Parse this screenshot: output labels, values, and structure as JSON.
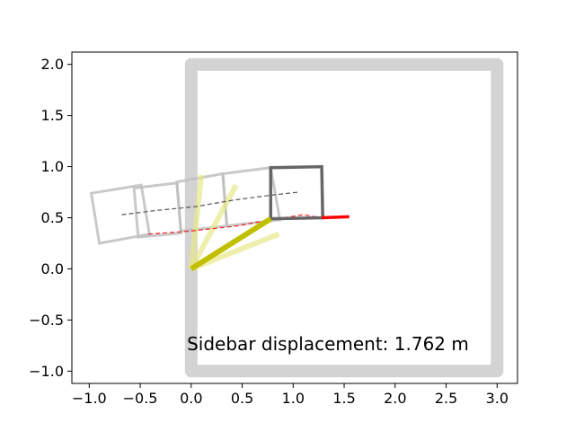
{
  "chart_data": {
    "type": "line",
    "title": "",
    "xlabel": "",
    "ylabel": "",
    "xlim": [
      -1.17,
      3.2
    ],
    "ylim": [
      -1.12,
      2.12
    ],
    "grid": false,
    "x_ticks": [
      -1.0,
      -0.5,
      0.0,
      0.5,
      1.0,
      1.5,
      2.0,
      2.5,
      3.0
    ],
    "x_tick_labels": [
      "−1.0",
      "−0.5",
      "0.0",
      "0.5",
      "1.0",
      "1.5",
      "2.0",
      "2.5",
      "3.0"
    ],
    "y_ticks": [
      -1.0,
      -0.5,
      0.0,
      0.5,
      1.0,
      1.5,
      2.0
    ],
    "y_tick_labels": [
      "−1.0",
      "−0.5",
      "0.0",
      "0.5",
      "1.0",
      "1.5",
      "2.0"
    ],
    "annotation": "Sidebar displacement: 1.762 m",
    "colors": {
      "wall": "#d3d3d3",
      "current_body": "#666666",
      "ghost_body": "#bfbfbf",
      "arm": "#c0c000",
      "arm_ghost": "#e8e88a",
      "contact": "#ff0000",
      "path": "#555555"
    },
    "wall_box": [
      [
        0.0,
        -1.0
      ],
      [
        3.0,
        -1.0
      ],
      [
        3.0,
        2.0
      ],
      [
        0.0,
        2.0
      ]
    ],
    "current_body": [
      [
        0.78,
        0.49
      ],
      [
        1.29,
        0.5
      ],
      [
        1.28,
        1.0
      ],
      [
        0.78,
        0.99
      ]
    ],
    "ghost_bodies": [
      [
        [
          -0.98,
          0.74
        ],
        [
          -0.9,
          0.25
        ],
        [
          -0.41,
          0.34
        ],
        [
          -0.49,
          0.82
        ]
      ],
      [
        [
          -0.56,
          0.79
        ],
        [
          -0.52,
          0.31
        ],
        [
          -0.1,
          0.35
        ],
        [
          -0.14,
          0.84
        ]
      ],
      [
        [
          -0.14,
          0.85
        ],
        [
          -0.1,
          0.37
        ],
        [
          0.35,
          0.42
        ],
        [
          0.31,
          0.93
        ]
      ],
      [
        [
          0.31,
          0.93
        ],
        [
          0.35,
          0.42
        ],
        [
          0.87,
          0.48
        ],
        [
          0.78,
          0.99
        ]
      ]
    ],
    "current_arm": [
      [
        0.0,
        0.0
      ],
      [
        0.78,
        0.49
      ]
    ],
    "ghost_arms": [
      [
        [
          0.0,
          0.0
        ],
        [
          0.1,
          0.92
        ]
      ],
      [
        [
          0.0,
          0.0
        ],
        [
          0.44,
          0.82
        ]
      ],
      [
        [
          0.0,
          0.0
        ],
        [
          0.86,
          0.34
        ]
      ]
    ],
    "contact_segment": [
      [
        1.28,
        0.5
      ],
      [
        1.55,
        0.51
      ]
    ],
    "contact_trace": [
      [
        -0.42,
        0.34
      ],
      [
        0.0,
        0.37
      ],
      [
        0.45,
        0.42
      ],
      [
        0.78,
        0.48
      ],
      [
        1.1,
        0.53
      ],
      [
        1.28,
        0.5
      ]
    ],
    "path_trace": [
      [
        -0.68,
        0.53
      ],
      [
        -0.35,
        0.57
      ],
      [
        0.05,
        0.61
      ],
      [
        0.4,
        0.67
      ],
      [
        0.78,
        0.72
      ],
      [
        1.05,
        0.75
      ]
    ]
  }
}
